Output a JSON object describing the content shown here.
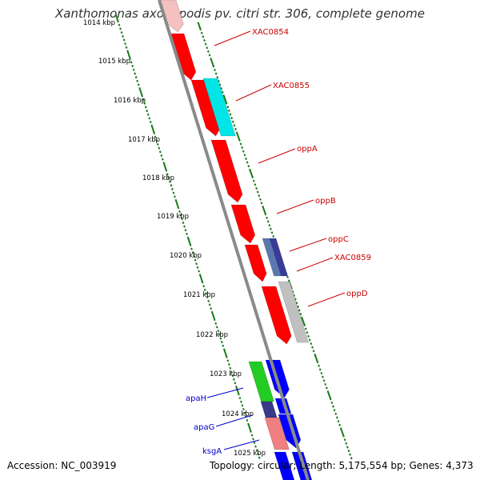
{
  "title": "Xanthomonas axonopodis pv. citri str. 306, complete genome",
  "footer": {
    "accession": "Accession: NC_003919",
    "summary": "Topology: circular; Length: 5,175,554 bp; Genes: 4,373"
  },
  "colors": {
    "ruler_ticks": "#1a7a1a",
    "backbone": "#8a8a8a",
    "plus_label": "#cc0000",
    "minus_label": "#0000cc"
  },
  "ruler_labels": [
    "1014 kbp",
    "1015 kbp",
    "1016 kbp",
    "1017 kbp",
    "1018 kbp",
    "1019 kbp",
    "1020 kbp",
    "1021 kbp",
    "1022 kbp",
    "1023 kbp",
    "1024 kbp",
    "1025 kbp"
  ],
  "gene_labels": [
    {
      "name": "XAC0854",
      "strand": "plus"
    },
    {
      "name": "XAC0855",
      "strand": "plus"
    },
    {
      "name": "oppA",
      "strand": "plus"
    },
    {
      "name": "oppB",
      "strand": "plus"
    },
    {
      "name": "oppC",
      "strand": "plus"
    },
    {
      "name": "XAC0859",
      "strand": "plus"
    },
    {
      "name": "oppD",
      "strand": "plus"
    },
    {
      "name": "apaH",
      "strand": "minus"
    },
    {
      "name": "apaG",
      "strand": "minus"
    },
    {
      "name": "ksgA",
      "strand": "minus"
    }
  ]
}
